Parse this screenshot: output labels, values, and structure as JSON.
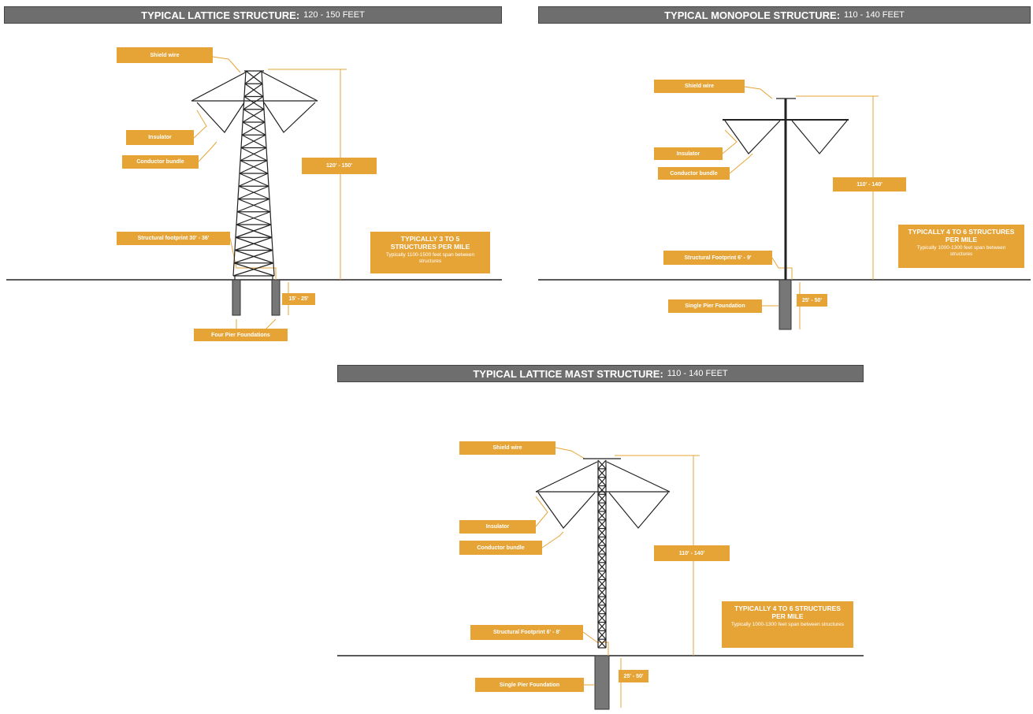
{
  "panels": [
    {
      "title": "TYPICAL LATTICE STRUCTURE:",
      "height_range": "120 - 150 FEET",
      "shield_wire": "Shield wire",
      "insulator": "Insulator",
      "conductor": "Conductor bundle",
      "height": "120' - 150'",
      "footprint": "Structural footprint 30' - 36'",
      "depth": "15' - 25'",
      "foundation": "Four Pier Foundations",
      "summary_title": "TYPICALLY 3 TO 5 STRUCTURES PER MILE",
      "summary_text": "Typically 1100-1500 feet span between structures"
    },
    {
      "title": "TYPICAL MONOPOLE STRUCTURE:",
      "height_range": "110 - 140 FEET",
      "shield_wire": "Shield wire",
      "insulator": "Insulator",
      "conductor": "Conductor bundle",
      "height": "110' - 140'",
      "footprint": "Structural Footprint 6' - 9'",
      "depth": "25' - 50'",
      "foundation": "Single Pier Foundation",
      "summary_title": "TYPICALLY 4 TO 6 STRUCTURES PER MILE",
      "summary_text": "Typically 1000-1300 feet span between structures"
    },
    {
      "title": "TYPICAL LATTICE MAST STRUCTURE:",
      "height_range": "110 - 140 FEET",
      "shield_wire": "Shield wire",
      "insulator": "Insulator",
      "conductor": "Conductor bundle",
      "height": "110' - 140'",
      "footprint": "Structural Footprint 6' - 8'",
      "depth": "25' - 50'",
      "foundation": "Single Pier Foundation",
      "summary_title": "TYPICALLY 4 TO 6 STRUCTURES PER MILE",
      "summary_text": "Typically 1000-1300 feet span between structures"
    }
  ]
}
